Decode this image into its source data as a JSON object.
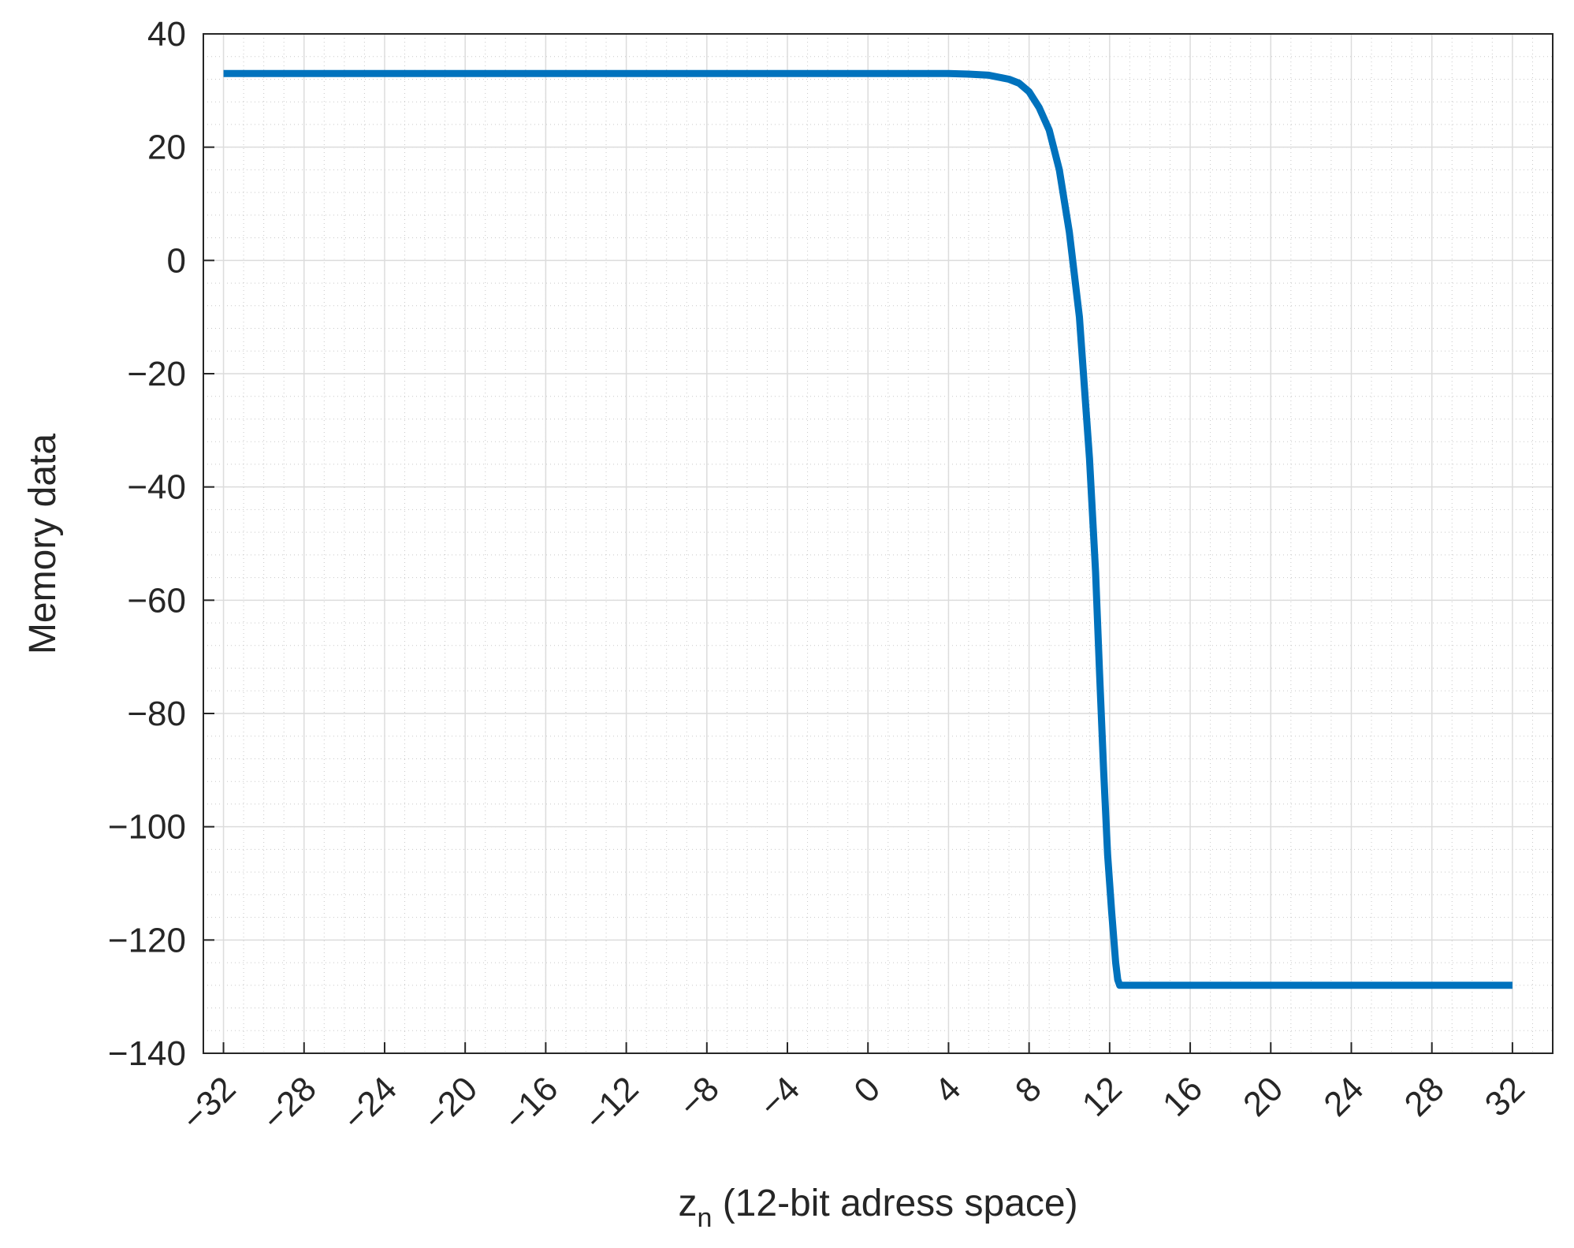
{
  "chart_data": {
    "type": "line",
    "title": "",
    "xlabel": "z",
    "xlabel_subscript": "n",
    "xlabel_suffix": " (12-bit adress space)",
    "ylabel": "Memory data",
    "xlim": [
      -33,
      34
    ],
    "ylim": [
      -140,
      40
    ],
    "xticks": [
      -32,
      -28,
      -24,
      -20,
      -16,
      -12,
      -8,
      -4,
      0,
      4,
      8,
      12,
      16,
      20,
      24,
      28,
      32
    ],
    "xtick_labels": [
      "−32",
      "−28",
      "−24",
      "−20",
      "−16",
      "−12",
      "−8",
      "−4",
      "0",
      "4",
      "8",
      "12",
      "16",
      "20",
      "24",
      "28",
      "32"
    ],
    "yticks": [
      40,
      20,
      0,
      -20,
      -40,
      -60,
      -80,
      -100,
      -120,
      -140
    ],
    "ytick_labels": [
      "40",
      "20",
      "0",
      "−20",
      "−40",
      "−60",
      "−80",
      "−100",
      "−120",
      "−140"
    ],
    "grid": "major and minor",
    "line_color": "#0072BD",
    "series": [
      {
        "x": [
          -32,
          0,
          4,
          5,
          6,
          7,
          7.5,
          8,
          8.5,
          9,
          9.5,
          10,
          10.5,
          11,
          11.3,
          11.5,
          11.7,
          11.9,
          12.1,
          12.3,
          12.4,
          12.5,
          32
        ],
        "y": [
          33,
          33,
          33,
          32.9,
          32.7,
          32,
          31.3,
          29.8,
          27,
          23,
          16,
          5,
          -10,
          -35,
          -55,
          -73,
          -90,
          -105,
          -115,
          -124,
          -127,
          -128,
          -128
        ]
      }
    ]
  }
}
